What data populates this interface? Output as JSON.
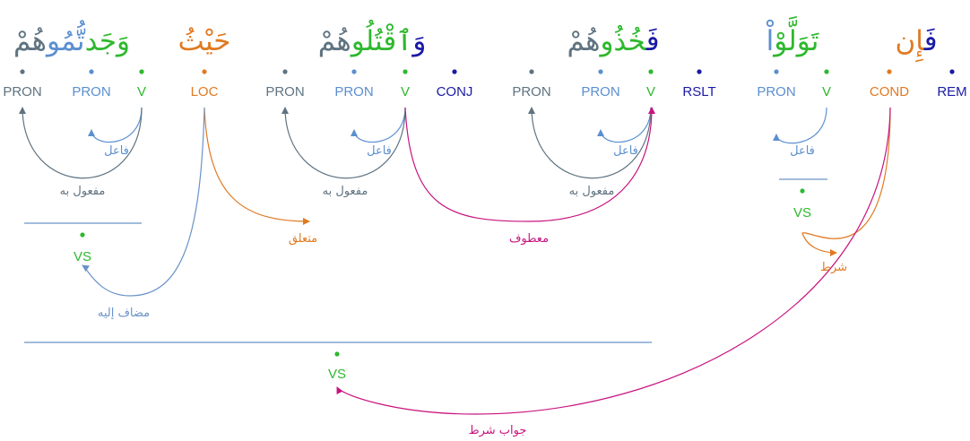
{
  "colors": {
    "green": "#2eb82e",
    "blue": "#5b8fd0",
    "gray": "#5f7380",
    "orange": "#e07a22",
    "navy": "#1a1aa6",
    "magenta": "#c8147f",
    "line_blue": "#6a93c8"
  },
  "words": [
    {
      "id": "w1",
      "parts": [
        {
          "text": "فَ",
          "color": "navy"
        },
        {
          "text": "إِن",
          "color": "orange"
        }
      ]
    },
    {
      "id": "w2",
      "parts": [
        {
          "text": "تَوَلَّوْ",
          "color": "green"
        },
        {
          "text": "اْ",
          "color": "blue"
        }
      ]
    },
    {
      "id": "w3",
      "parts": [
        {
          "text": "فَ",
          "color": "navy"
        },
        {
          "text": "خُذُو",
          "color": "green"
        },
        {
          "text": "هُمْ",
          "color": "gray"
        }
      ]
    },
    {
      "id": "w4",
      "parts": [
        {
          "text": "وَ",
          "color": "navy"
        },
        {
          "text": "ٱقْتُلُو",
          "color": "green"
        },
        {
          "text": "هُمْ",
          "color": "gray"
        }
      ]
    },
    {
      "id": "w5",
      "parts": [
        {
          "text": "حَيْثُ",
          "color": "orange"
        }
      ]
    },
    {
      "id": "w6",
      "parts": [
        {
          "text": "وَجَد",
          "color": "green"
        },
        {
          "text": "تُّمُو",
          "color": "blue"
        },
        {
          "text": "هُمْ",
          "color": "gray"
        }
      ]
    }
  ],
  "tags": [
    {
      "id": "rem",
      "label": "REM",
      "color": "navy"
    },
    {
      "id": "cond",
      "label": "COND",
      "color": "orange"
    },
    {
      "id": "v1",
      "label": "V",
      "color": "green"
    },
    {
      "id": "pron1",
      "label": "PRON",
      "color": "blue"
    },
    {
      "id": "rslt",
      "label": "RSLT",
      "color": "navy"
    },
    {
      "id": "v2",
      "label": "V",
      "color": "green"
    },
    {
      "id": "pron2",
      "label": "PRON",
      "color": "blue"
    },
    {
      "id": "pron3",
      "label": "PRON",
      "color": "gray"
    },
    {
      "id": "conj",
      "label": "CONJ",
      "color": "navy"
    },
    {
      "id": "v3",
      "label": "V",
      "color": "green"
    },
    {
      "id": "pron4",
      "label": "PRON",
      "color": "blue"
    },
    {
      "id": "pron5",
      "label": "PRON",
      "color": "gray"
    },
    {
      "id": "loc",
      "label": "LOC",
      "color": "orange"
    },
    {
      "id": "v4",
      "label": "V",
      "color": "green"
    },
    {
      "id": "pron6",
      "label": "PRON",
      "color": "blue"
    },
    {
      "id": "pron7",
      "label": "PRON",
      "color": "gray"
    }
  ],
  "phrase_nodes": [
    {
      "id": "vs1",
      "label": "VS",
      "color": "green"
    },
    {
      "id": "vs2",
      "label": "VS",
      "color": "green"
    },
    {
      "id": "vs3",
      "label": "VS",
      "color": "green"
    }
  ],
  "relations": [
    {
      "id": "r1",
      "label": "فاعل",
      "color": "blue"
    },
    {
      "id": "r2",
      "label": "شرط",
      "color": "orange"
    },
    {
      "id": "r3",
      "label": "فاعل",
      "color": "blue"
    },
    {
      "id": "r4",
      "label": "مفعول به",
      "color": "gray"
    },
    {
      "id": "r5",
      "label": "فاعل",
      "color": "blue"
    },
    {
      "id": "r6",
      "label": "مفعول به",
      "color": "gray"
    },
    {
      "id": "r7",
      "label": "معطوف",
      "color": "magenta"
    },
    {
      "id": "r8",
      "label": "متعلق",
      "color": "orange"
    },
    {
      "id": "r9",
      "label": "فاعل",
      "color": "blue"
    },
    {
      "id": "r10",
      "label": "مفعول به",
      "color": "gray"
    },
    {
      "id": "r11",
      "label": "مضاف إليه",
      "color": "line_blue"
    },
    {
      "id": "r12",
      "label": "جواب شرط",
      "color": "magenta"
    }
  ]
}
